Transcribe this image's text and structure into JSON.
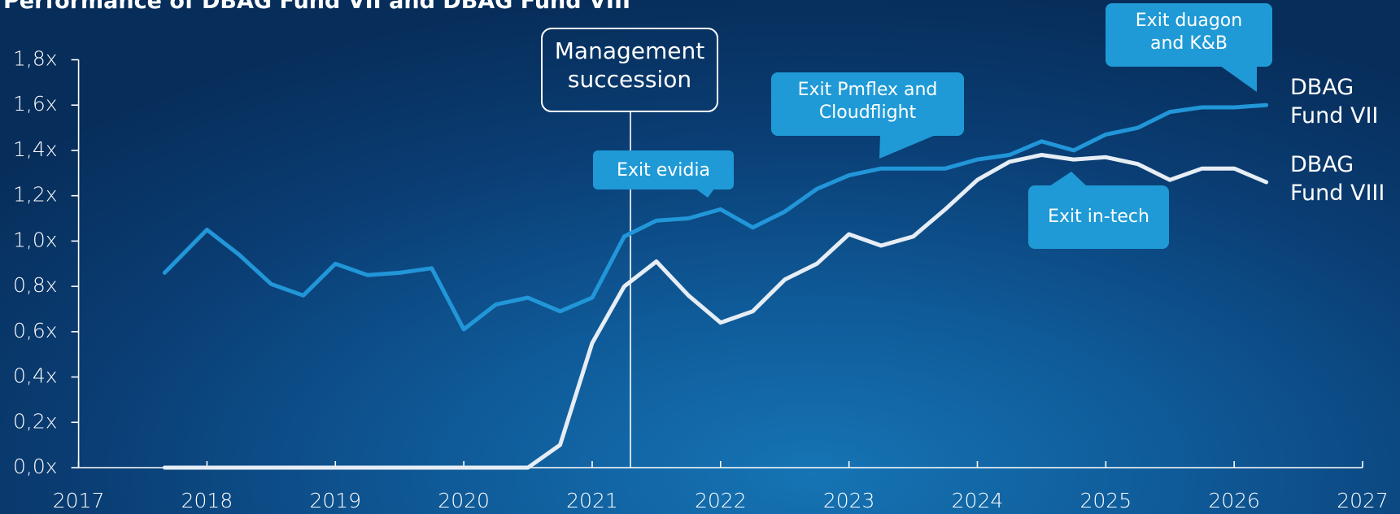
{
  "chart_data": {
    "type": "line",
    "title": "Performance of DBAG Fund VII and DBAG Fund VIII",
    "x": [
      2017.67,
      2018,
      2018.25,
      2018.5,
      2018.75,
      2019,
      2019.25,
      2019.5,
      2019.75,
      2020,
      2020.25,
      2020.5,
      2020.75,
      2021,
      2021.25,
      2021.5,
      2021.75,
      2022,
      2022.25,
      2022.5,
      2022.75,
      2023,
      2023.25,
      2023.5,
      2023.75,
      2024,
      2024.25,
      2024.5,
      2024.75,
      2025,
      2025.25,
      2025.5,
      2025.75,
      2026,
      2026.25
    ],
    "series": [
      {
        "name": "DBAG Fund VII",
        "color": "#2196d8",
        "values": [
          0.86,
          1.05,
          0.94,
          0.81,
          0.76,
          0.9,
          0.85,
          0.86,
          0.88,
          0.61,
          0.72,
          0.75,
          0.69,
          0.75,
          1.02,
          1.09,
          1.1,
          1.14,
          1.06,
          1.13,
          1.23,
          1.29,
          1.32,
          1.32,
          1.32,
          1.36,
          1.38,
          1.44,
          1.4,
          1.47,
          1.5,
          1.57,
          1.59,
          1.59,
          1.6
        ]
      },
      {
        "name": "DBAG Fund VIII",
        "color": "#e6edf5",
        "values": [
          0,
          0,
          0,
          0,
          0,
          0,
          0,
          0,
          0,
          0,
          0,
          0,
          0.1,
          0.55,
          0.8,
          0.91,
          0.76,
          0.64,
          0.69,
          0.83,
          0.9,
          1.03,
          0.98,
          1.02,
          1.14,
          1.27,
          1.35,
          1.38,
          1.36,
          1.37,
          1.34,
          1.27,
          1.32,
          1.32,
          1.26
        ]
      }
    ],
    "xlim": [
      2017,
      2027
    ],
    "xticks": [
      2017,
      2018,
      2019,
      2020,
      2021,
      2022,
      2023,
      2024,
      2025,
      2026,
      2027
    ],
    "ylim": [
      0,
      1.8
    ],
    "yticks": [
      {
        "value": 0,
        "label": "0,0x"
      },
      {
        "value": 0.2,
        "label": "0,2x"
      },
      {
        "value": 0.4,
        "label": "0,4x"
      },
      {
        "value": 0.6,
        "label": "0,6x"
      },
      {
        "value": 0.8,
        "label": "0,8x"
      },
      {
        "value": 1.0,
        "label": "1,0x"
      },
      {
        "value": 1.2,
        "label": "1,2x"
      },
      {
        "value": 1.4,
        "label": "1,4x"
      },
      {
        "value": 1.6,
        "label": "1,6x"
      },
      {
        "value": 1.8,
        "label": "1,8x"
      }
    ],
    "annotations": [
      "Management succession",
      "Exit evidia",
      "Exit Pmflex and Cloudflight",
      "Exit duagon and K&B",
      "Exit in-tech"
    ]
  }
}
